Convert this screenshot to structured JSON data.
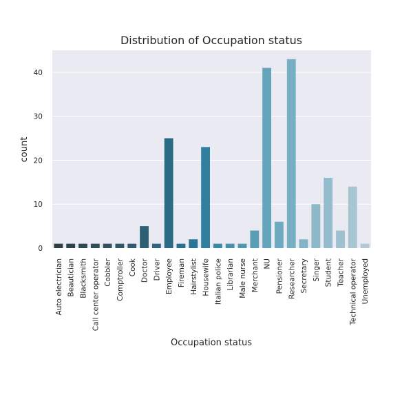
{
  "chart_data": {
    "type": "bar",
    "title": "Distribution of Occupation status",
    "xlabel": "Occupation status",
    "ylabel": "count",
    "ylim": [
      0,
      45
    ],
    "yticks": [
      0,
      10,
      20,
      30,
      40
    ],
    "grid": true,
    "categories": [
      "Auto electrician",
      "Beautician",
      "Blacksmith",
      "Call center operator",
      "Cobbler",
      "Comptroller",
      "Cook",
      "Doctor",
      "Driver",
      "Employee",
      "Fireman",
      "Hairstylist",
      "Housewife",
      "Italian police",
      "Librarian",
      "Male nurse",
      "Merchant",
      "NU",
      "Pensioner",
      "Researcher",
      "Secretary",
      "Singer",
      "Student",
      "Teacher",
      "Technical operator",
      "Unemployed"
    ],
    "values": [
      1,
      1,
      1,
      1,
      1,
      1,
      1,
      5,
      1,
      25,
      1,
      2,
      23,
      1,
      1,
      1,
      4,
      41,
      6,
      43,
      2,
      10,
      16,
      4,
      14,
      1
    ],
    "colors": [
      "#2f3d44",
      "#2f4249",
      "#30474f",
      "#304c56",
      "#30515d",
      "#305664",
      "#2f5b6c",
      "#2e6074",
      "#2d657c",
      "#2b6a84",
      "#296f8d",
      "#277595",
      "#307f9e",
      "#3b88a4",
      "#4590ab",
      "#5097b1",
      "#5a9eb6",
      "#64a4bb",
      "#6eaabf",
      "#78afc3",
      "#82b3c6",
      "#8cb8c9",
      "#95bccc",
      "#9fc0cf",
      "#a8c5d2",
      "#b1c9d5"
    ],
    "background": "#eaeaf2"
  }
}
